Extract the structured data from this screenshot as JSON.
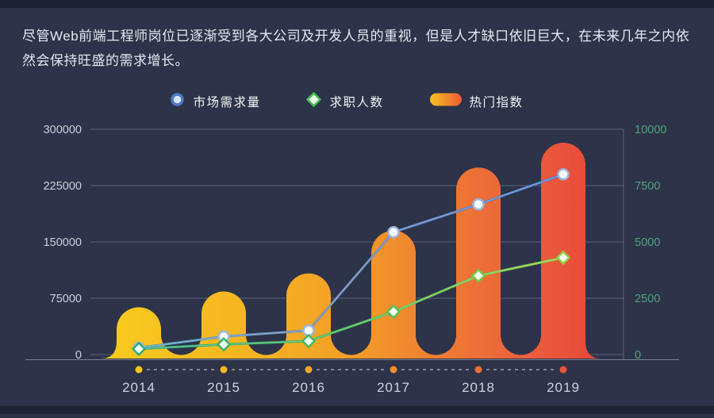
{
  "page": {
    "background": "#2d3348",
    "strip_color": "#1e2333"
  },
  "description": {
    "text": "尽管Web前端工程师岗位已逐渐受到各大公司及开发人员的重视，但是人才缺口依旧巨大，在未来几年之内依然会保持旺盛的需求增长。"
  },
  "legend": {
    "items": [
      {
        "label": "市场需求量",
        "marker": "circle",
        "color": "#4a7ac8"
      },
      {
        "label": "求职人数",
        "marker": "diamond",
        "color": "#43bd4e"
      },
      {
        "label": "热门指数",
        "marker": "pill",
        "color_start": "#f6c31e",
        "color_end": "#ec5a36"
      }
    ]
  },
  "chart_data": {
    "type": "combo",
    "categories": [
      "2014",
      "2015",
      "2016",
      "2017",
      "2018",
      "2019"
    ],
    "series": [
      {
        "name": "市场需求量",
        "type": "line",
        "axis": "left",
        "marker": "circle",
        "color": "#4b7ed6",
        "values": [
          9000,
          24000,
          32000,
          163000,
          200000,
          240000
        ]
      },
      {
        "name": "求职人数",
        "type": "line",
        "axis": "right",
        "marker": "diamond",
        "color": "#43bd4e",
        "values": [
          250,
          450,
          600,
          1900,
          3500,
          4300
        ]
      },
      {
        "name": "热门指数",
        "type": "bar",
        "axis": "right",
        "gradient_start": "#f8ca1e",
        "gradient_end": "#e84a3a",
        "values": [
          2100,
          2800,
          3600,
          5500,
          8300,
          9400
        ]
      }
    ],
    "left_axis": {
      "min": 0,
      "max": 300000,
      "tick_step": 75000,
      "ticks": [
        "0",
        "75000",
        "150000",
        "225000",
        "300000"
      ],
      "color": "#c9d0dd"
    },
    "right_axis": {
      "min": 0,
      "max": 10000,
      "tick_step": 2500,
      "ticks": [
        "0",
        "2500",
        "5000",
        "7500",
        "10000"
      ],
      "color": "#4fa47b"
    },
    "x_axis": {
      "labels": [
        "2014",
        "2015",
        "2016",
        "2017",
        "2018",
        "2019"
      ],
      "color": "#ccd3e0"
    },
    "grid": true,
    "legend_position": "top"
  }
}
